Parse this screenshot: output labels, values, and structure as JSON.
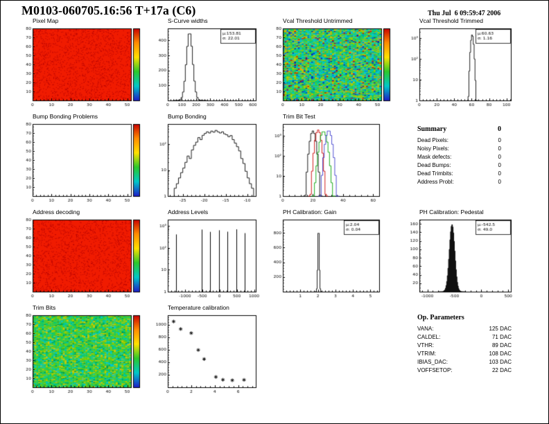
{
  "page": {
    "title": "M0103-060705.16:56 T+17a (C6)",
    "date": "Thu Jul  6 09:59:47 2006"
  },
  "summary": {
    "title": "Summary",
    "total": "0",
    "rows": [
      {
        "label": "Dead Pixels:",
        "value": "0"
      },
      {
        "label": "Noisy Pixels:",
        "value": "0"
      },
      {
        "label": "Mask defects:",
        "value": "0"
      },
      {
        "label": "Dead Bumps:",
        "value": "0"
      },
      {
        "label": "Dead Trimbits:",
        "value": "0"
      },
      {
        "label": "Address Probl:",
        "value": "0"
      }
    ]
  },
  "op_parameters": {
    "title": "Op. Parameters",
    "rows": [
      {
        "label": "VANA:",
        "value": "125 DAC"
      },
      {
        "label": "CALDEL:",
        "value": "71 DAC"
      },
      {
        "label": "VTHR:",
        "value": "89 DAC"
      },
      {
        "label": "VTRIM:",
        "value": "108 DAC"
      },
      {
        "label": "IBIAS_DAC:",
        "value": "103 DAC"
      },
      {
        "label": "VOFFSETOP:",
        "value": "22 DAC"
      }
    ]
  },
  "chart_data": [
    {
      "id": "pixel-map",
      "type": "heatmap",
      "title": "Pixel Map",
      "style": "solid",
      "fill_color": "#f01b00",
      "speckle_color": "#b30000",
      "seed": 5,
      "x_range": [
        0,
        52
      ],
      "y_range": [
        0,
        80
      ],
      "xticks": [
        0,
        10,
        20,
        30,
        40,
        50
      ],
      "yticks": [
        10,
        20,
        30,
        40,
        50,
        60,
        70,
        80
      ],
      "colorbar": true
    },
    {
      "id": "scurve-widths",
      "type": "histogram",
      "title": "S-Curve widths",
      "yscale": "linear",
      "x_range": [
        0,
        620
      ],
      "y_range": [
        0,
        480
      ],
      "xticks": [
        0,
        100,
        200,
        300,
        400,
        500,
        600
      ],
      "yticks": [
        100,
        200,
        300,
        400
      ],
      "gauss": {
        "mu": 153.81,
        "sigma": 22.01,
        "peak": 455,
        "bin": 10
      },
      "stats": [
        "μ:153.81",
        "σ: 22.01"
      ],
      "color": "#000000"
    },
    {
      "id": "vcal-untrimmed",
      "type": "heatmap",
      "title": "Vcal Threshold Untrimmed",
      "style": "noise",
      "seed": 7,
      "palette": [
        [
          "#00c8c8",
          0.22
        ],
        [
          "#00c878",
          0.2
        ],
        [
          "#3ccc3c",
          0.2
        ],
        [
          "#96cc00",
          0.12
        ],
        [
          "#c8c800",
          0.08
        ],
        [
          "#0078d2",
          0.08
        ],
        [
          "#0028b4",
          0.04
        ],
        [
          "#d20000",
          0.03
        ],
        [
          "#ff8c00",
          0.03
        ]
      ],
      "x_range": [
        0,
        52
      ],
      "y_range": [
        0,
        80
      ],
      "xticks": [
        0,
        10,
        20,
        30,
        40,
        50
      ],
      "yticks": [
        10,
        20,
        30,
        40,
        50,
        60,
        70,
        80
      ],
      "colorbar": true
    },
    {
      "id": "vcal-trimmed",
      "type": "histogram",
      "title": "Vcal Threshold Trimmed",
      "yscale": "log",
      "x_range": [
        0,
        105
      ],
      "y_range": [
        1,
        3000
      ],
      "xticks": [
        0,
        20,
        40,
        60,
        80,
        100
      ],
      "yticks_log": [
        [
          1,
          "1"
        ],
        [
          10,
          "10"
        ],
        [
          100,
          "10²"
        ],
        [
          1000,
          "10³"
        ]
      ],
      "gauss": {
        "mu": 60.63,
        "sigma": 1.16,
        "peak": 1500,
        "bin": 1
      },
      "stats": [
        "μ:60.63",
        "σ: 1.16"
      ],
      "color": "#000000"
    },
    {
      "id": "bump-problems",
      "type": "heatmap",
      "title": "Bump Bonding Problems",
      "style": "empty",
      "x_range": [
        0,
        52
      ],
      "y_range": [
        0,
        80
      ],
      "xticks": [
        0,
        10,
        20,
        30,
        40,
        50
      ],
      "yticks": [
        10,
        20,
        30,
        40,
        50,
        60,
        70,
        80
      ],
      "colorbar": true
    },
    {
      "id": "bump-bonding",
      "type": "histogram",
      "title": "Bump Bonding",
      "yscale": "log",
      "x_range": [
        -28.5,
        -8
      ],
      "y_range": [
        1,
        600
      ],
      "xticks": [
        -25,
        -20,
        -15,
        -10
      ],
      "yticks_log": [
        [
          1,
          "1"
        ],
        [
          10,
          "10"
        ],
        [
          100,
          "10²"
        ]
      ],
      "bin": 0.5,
      "bins": [
        [
          -27,
          2
        ],
        [
          -26.5,
          3
        ],
        [
          -26,
          5
        ],
        [
          -25.5,
          8
        ],
        [
          -25,
          12
        ],
        [
          -24.5,
          20
        ],
        [
          -24,
          35
        ],
        [
          -23.5,
          28
        ],
        [
          -23,
          60
        ],
        [
          -22.5,
          90
        ],
        [
          -22,
          120
        ],
        [
          -21.5,
          180
        ],
        [
          -21,
          150
        ],
        [
          -20.5,
          220
        ],
        [
          -20,
          260
        ],
        [
          -19.5,
          300
        ],
        [
          -19,
          270
        ],
        [
          -18.5,
          320
        ],
        [
          -18,
          290
        ],
        [
          -17.5,
          340
        ],
        [
          -17,
          300
        ],
        [
          -16.5,
          270
        ],
        [
          -16,
          300
        ],
        [
          -15.5,
          250
        ],
        [
          -15,
          230
        ],
        [
          -14.5,
          195
        ],
        [
          -14,
          215
        ],
        [
          -13.5,
          150
        ],
        [
          -13,
          110
        ],
        [
          -12.5,
          80
        ],
        [
          -12,
          55
        ],
        [
          -11.5,
          28
        ],
        [
          -11,
          18
        ],
        [
          -10.5,
          9
        ],
        [
          -10,
          5
        ],
        [
          -9.5,
          3
        ],
        [
          -9,
          2
        ]
      ],
      "color": "#000000"
    },
    {
      "id": "trim-bit-test",
      "type": "multi_histogram",
      "title": "Trim Bit Test",
      "yscale": "log",
      "x_range": [
        0,
        64
      ],
      "y_range": [
        1,
        4000
      ],
      "xticks": [
        0,
        20,
        40,
        60
      ],
      "yticks_log": [
        [
          1,
          "1"
        ],
        [
          10,
          "10"
        ],
        [
          100,
          "10²"
        ],
        [
          1000,
          "10³"
        ]
      ],
      "series": [
        {
          "name": "trim-bit-0",
          "color": "#000000",
          "gauss": {
            "mu": 20,
            "sigma": 1.3,
            "peak": 1800,
            "bin": 1
          }
        },
        {
          "name": "trim-bit-1",
          "color": "#cc0000",
          "gauss": {
            "mu": 23.5,
            "sigma": 1.3,
            "peak": 2000,
            "bin": 1
          }
        },
        {
          "name": "trim-bit-2",
          "color": "#00a000",
          "gauss": {
            "mu": 27,
            "sigma": 1.6,
            "peak": 1700,
            "bin": 1
          }
        },
        {
          "name": "trim-bit-3",
          "color": "#3c3ccc",
          "gauss": {
            "mu": 30.5,
            "sigma": 1.4,
            "peak": 1900,
            "bin": 1
          }
        }
      ]
    },
    {
      "id": "address-decoding",
      "type": "heatmap",
      "title": "Address decoding",
      "style": "solid",
      "fill_color": "#f01b00",
      "speckle_color": "#b30000",
      "seed": 11,
      "x_range": [
        0,
        52
      ],
      "y_range": [
        0,
        80
      ],
      "xticks": [
        0,
        10,
        20,
        30,
        40,
        50
      ],
      "yticks": [
        10,
        20,
        30,
        40,
        50,
        60,
        70,
        80
      ],
      "colorbar": true
    },
    {
      "id": "address-levels",
      "type": "spikes",
      "title": "Address Levels",
      "yscale": "log",
      "x_range": [
        -1500,
        1050
      ],
      "y_range": [
        1,
        2000
      ],
      "xticks": [
        -1000,
        -500,
        0,
        500,
        1000
      ],
      "yticks_log": [
        [
          1,
          "1"
        ],
        [
          10,
          "10"
        ],
        [
          100,
          "10²"
        ],
        [
          1000,
          "10³"
        ]
      ],
      "spikes": [
        [
          -1250,
          420
        ],
        [
          -520,
          700
        ],
        [
          -270,
          550
        ],
        [
          -20,
          650
        ],
        [
          230,
          560
        ],
        [
          480,
          720
        ],
        [
          730,
          480
        ]
      ]
    },
    {
      "id": "ph-gain",
      "type": "histogram",
      "title": "PH Calibration: Gain",
      "yscale": "linear",
      "x_range": [
        0,
        5.5
      ],
      "y_range": [
        0,
        980
      ],
      "xticks": [
        1,
        2,
        3,
        4,
        5
      ],
      "yticks": [
        200,
        400,
        600,
        800
      ],
      "gauss": {
        "mu": 2.04,
        "sigma": 0.04,
        "peak": 900,
        "bin": 0.04
      },
      "stats": [
        "μ:2.04",
        "σ: 0.04"
      ],
      "color": "#000000"
    },
    {
      "id": "ph-pedestal",
      "type": "histogram",
      "title": "PH Calibration: Pedestal",
      "yscale": "linear",
      "x_range": [
        -1150,
        550
      ],
      "y_range": [
        0,
        170
      ],
      "xticks": [
        -1000,
        -500,
        0,
        500
      ],
      "yticks": [
        20,
        40,
        60,
        80,
        100,
        120,
        140,
        160
      ],
      "gauss": {
        "mu": -542.5,
        "sigma": 49,
        "peak": 158,
        "bin": 12
      },
      "stats": [
        "μ:-542.5",
        "σ: 49.0"
      ],
      "color": "#000000",
      "fill": "#101010"
    },
    {
      "id": "trim-bits",
      "type": "heatmap",
      "title": "Trim Bits",
      "style": "noise",
      "seed": 13,
      "palette": [
        [
          "#3ccc3c",
          0.28
        ],
        [
          "#00c878",
          0.22
        ],
        [
          "#78cc00",
          0.18
        ],
        [
          "#00c8c8",
          0.12
        ],
        [
          "#c8c800",
          0.12
        ],
        [
          "#00a050",
          0.08
        ]
      ],
      "x_range": [
        0,
        52
      ],
      "y_range": [
        0,
        80
      ],
      "xticks": [
        0,
        10,
        20,
        30,
        40,
        50
      ],
      "yticks": [
        10,
        20,
        30,
        40,
        50,
        60,
        70,
        80
      ],
      "colorbar": true
    },
    {
      "id": "temperature",
      "type": "scatter",
      "title": "Temperature calibration",
      "marker": "asterisk",
      "x_range": [
        0,
        7.5
      ],
      "y_range": [
        0,
        1150
      ],
      "xticks": [
        0,
        2,
        4,
        6
      ],
      "yticks": [
        200,
        400,
        600,
        800,
        1000
      ],
      "points": [
        [
          0.5,
          1050
        ],
        [
          1.1,
          930
        ],
        [
          2.0,
          865
        ],
        [
          2.6,
          595
        ],
        [
          3.1,
          450
        ],
        [
          4.1,
          165
        ],
        [
          4.7,
          120
        ],
        [
          5.5,
          112
        ],
        [
          6.5,
          118
        ]
      ]
    }
  ]
}
